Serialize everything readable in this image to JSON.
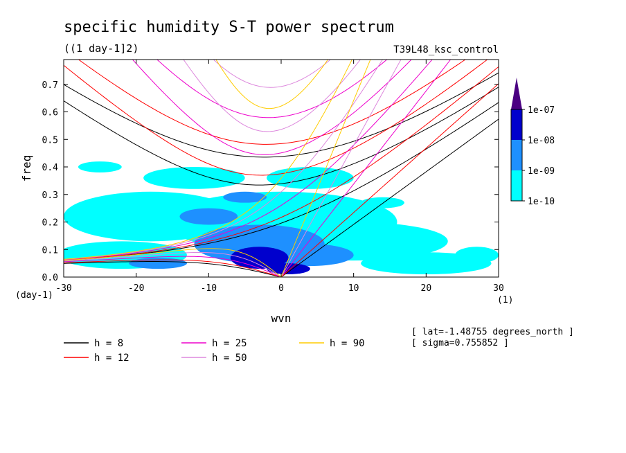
{
  "chart_data": {
    "type": "heatmap",
    "title": "specific humidity S-T power spectrum",
    "subtitle": "((1 day-1]2)",
    "run_label": "T39L48_ksc_control",
    "xlabel": "wvn",
    "ylabel": "freq",
    "x_unit_label": "(1)",
    "y_unit_label": "(day-1)",
    "xlim": [
      -30,
      30
    ],
    "ylim": [
      0,
      0.79
    ],
    "x_ticks": [
      -30,
      -20,
      -10,
      0,
      10,
      20,
      30
    ],
    "x_tick_labels": [
      "-30",
      "-20",
      "-10",
      "0",
      "10",
      "20",
      "30"
    ],
    "y_ticks": [
      0,
      0.1,
      0.2,
      0.3,
      0.4,
      0.5,
      0.6,
      0.7
    ],
    "y_tick_labels": [
      "0.0",
      "0.1",
      "0.2",
      "0.3",
      "0.4",
      "0.5",
      "0.6",
      "0.7"
    ],
    "colorbar": {
      "levels": [
        "1e-10",
        "1e-09",
        "1e-08",
        "1e-07"
      ],
      "colors": [
        "#00ffff",
        "#1e90ff",
        "#0000cd",
        "#4b0082"
      ]
    },
    "contour_patches": [
      {
        "level": 0,
        "x": -18,
        "y": 0.22,
        "rx": 12,
        "ry": 0.09
      },
      {
        "level": 0,
        "x": 0,
        "y": 0.2,
        "rx": 16,
        "ry": 0.11
      },
      {
        "level": 0,
        "x": 10,
        "y": 0.13,
        "rx": 13,
        "ry": 0.07
      },
      {
        "level": 0,
        "x": -22,
        "y": 0.08,
        "rx": 9,
        "ry": 0.05
      },
      {
        "level": 0,
        "x": 20,
        "y": 0.05,
        "rx": 9,
        "ry": 0.04
      },
      {
        "level": 0,
        "x": -12,
        "y": 0.36,
        "rx": 7,
        "ry": 0.04
      },
      {
        "level": 0,
        "x": 4,
        "y": 0.36,
        "rx": 6,
        "ry": 0.04
      },
      {
        "level": 0,
        "x": -25,
        "y": 0.4,
        "rx": 3,
        "ry": 0.02
      },
      {
        "level": 0,
        "x": 27,
        "y": 0.08,
        "rx": 3,
        "ry": 0.03
      },
      {
        "level": 0,
        "x": 14,
        "y": 0.27,
        "rx": 3,
        "ry": 0.02
      },
      {
        "level": 1,
        "x": -3,
        "y": 0.12,
        "rx": 9,
        "ry": 0.07
      },
      {
        "level": 1,
        "x": -10,
        "y": 0.22,
        "rx": 4,
        "ry": 0.03
      },
      {
        "level": 1,
        "x": 4,
        "y": 0.08,
        "rx": 6,
        "ry": 0.04
      },
      {
        "level": 1,
        "x": -17,
        "y": 0.05,
        "rx": 4,
        "ry": 0.02
      },
      {
        "level": 1,
        "x": -5,
        "y": 0.29,
        "rx": 3,
        "ry": 0.02
      },
      {
        "level": 2,
        "x": -3,
        "y": 0.07,
        "rx": 4,
        "ry": 0.04
      },
      {
        "level": 2,
        "x": 1,
        "y": 0.03,
        "rx": 3,
        "ry": 0.02
      }
    ],
    "dispersion_curves": [
      {
        "h": 8,
        "color": "#000000"
      },
      {
        "h": 12,
        "color": "#ff0000"
      },
      {
        "h": 25,
        "color": "#ee00cc"
      },
      {
        "h": 50,
        "color": "#dd88dd"
      },
      {
        "h": 90,
        "color": "#ffcc00"
      }
    ],
    "legend": [
      {
        "label": "h =  8",
        "color": "#000000"
      },
      {
        "label": "h = 12",
        "color": "#ff0000"
      },
      {
        "label": "h = 25",
        "color": "#ee00cc"
      },
      {
        "label": "h = 50",
        "color": "#dd88dd"
      },
      {
        "label": "h = 90",
        "color": "#ffcc00"
      }
    ],
    "annotations": [
      "[ lat=-1.48755 degrees_north ]",
      "[ sigma=0.755852 ]"
    ]
  }
}
